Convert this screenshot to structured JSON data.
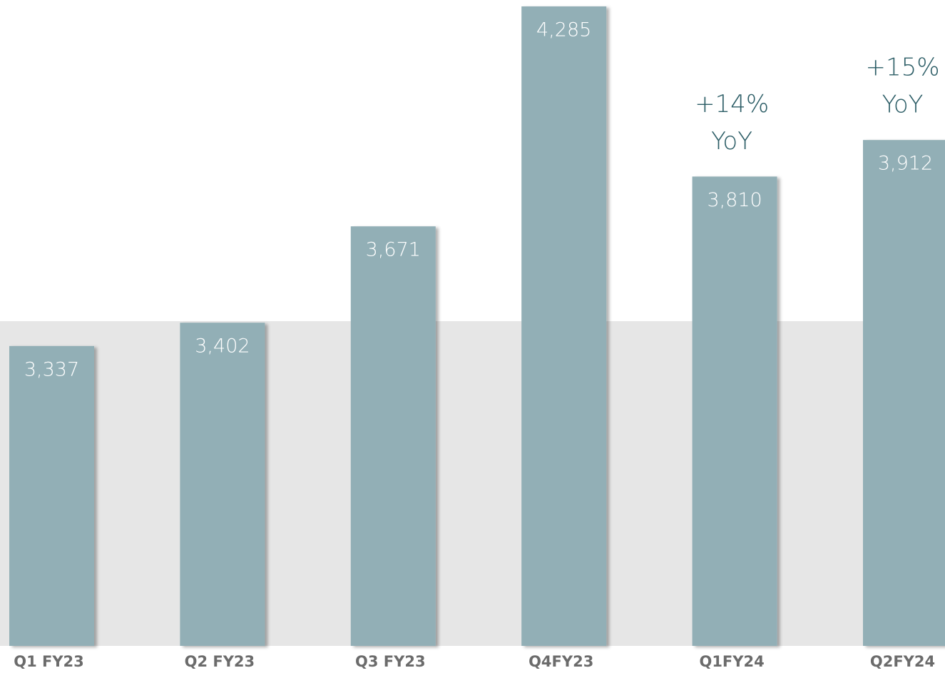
{
  "chart_data": {
    "type": "bar",
    "categories": [
      "Q1 FY23",
      "Q2 FY23",
      "Q3 FY23",
      "Q4FY23",
      "Q1FY24",
      "Q2FY24"
    ],
    "values": [
      3337,
      3402,
      3671,
      4285,
      3810,
      3912
    ],
    "value_labels": [
      "3,337",
      "3,402",
      "3,671",
      "4,285",
      "3,810",
      "3,912"
    ],
    "annotations": [
      null,
      null,
      null,
      null,
      [
        "+14%",
        "YoY"
      ],
      [
        "+15%",
        "YoY"
      ]
    ],
    "color": "#92afb6",
    "ylim": [
      2500,
      4300
    ]
  }
}
